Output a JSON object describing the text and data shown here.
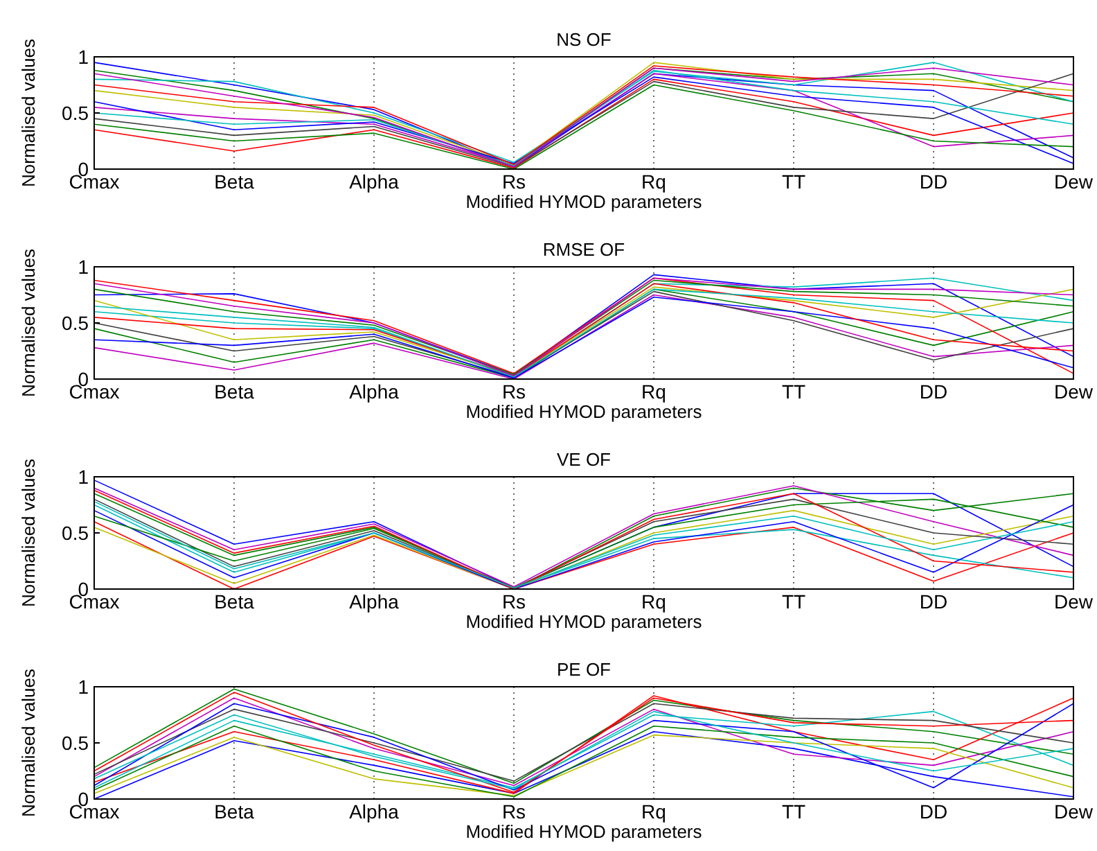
{
  "chart_data": [
    {
      "type": "line",
      "title": "NS OF",
      "xlabel": "Modified HYMOD parameters",
      "ylabel": "Normalised values",
      "categories": [
        "Cmax",
        "Beta",
        "Alpha",
        "Rs",
        "Rq",
        "TT",
        "DD",
        "Dew"
      ],
      "ylim": [
        0,
        1
      ],
      "yticks": [
        0,
        0.5,
        1
      ],
      "grid": "x",
      "line_style": "solid",
      "series": [
        {
          "color": "#0000ff",
          "values": [
            0.95,
            0.75,
            0.53,
            0.02,
            0.85,
            0.75,
            0.7,
            0.1
          ]
        },
        {
          "color": "#008000",
          "values": [
            0.88,
            0.7,
            0.45,
            0.03,
            0.9,
            0.8,
            0.85,
            0.6
          ]
        },
        {
          "color": "#ff0000",
          "values": [
            0.35,
            0.16,
            0.35,
            0.01,
            0.8,
            0.6,
            0.3,
            0.5
          ]
        },
        {
          "color": "#00bfbf",
          "values": [
            0.8,
            0.78,
            0.5,
            0.06,
            0.87,
            0.75,
            0.95,
            0.6
          ]
        },
        {
          "color": "#bf00bf",
          "values": [
            0.55,
            0.45,
            0.4,
            0.03,
            0.85,
            0.7,
            0.2,
            0.3
          ]
        },
        {
          "color": "#bfbf00",
          "values": [
            0.7,
            0.55,
            0.48,
            0.04,
            0.95,
            0.8,
            0.8,
            0.7
          ]
        },
        {
          "color": "#404040",
          "values": [
            0.45,
            0.3,
            0.38,
            0.02,
            0.78,
            0.55,
            0.45,
            0.85
          ]
        },
        {
          "color": "#0000ff",
          "values": [
            0.6,
            0.35,
            0.42,
            0.05,
            0.82,
            0.65,
            0.55,
            0.05
          ]
        },
        {
          "color": "#008000",
          "values": [
            0.4,
            0.25,
            0.32,
            0.0,
            0.75,
            0.52,
            0.25,
            0.2
          ]
        },
        {
          "color": "#ff0000",
          "values": [
            0.75,
            0.6,
            0.55,
            0.04,
            0.92,
            0.82,
            0.75,
            0.65
          ]
        },
        {
          "color": "#00bfbf",
          "values": [
            0.5,
            0.4,
            0.44,
            0.03,
            0.88,
            0.7,
            0.6,
            0.4
          ]
        },
        {
          "color": "#bf00bf",
          "values": [
            0.85,
            0.65,
            0.46,
            0.02,
            0.9,
            0.78,
            0.9,
            0.75
          ]
        }
      ]
    },
    {
      "type": "line",
      "title": "RMSE OF",
      "xlabel": "Modified HYMOD parameters",
      "ylabel": "Normalised values",
      "categories": [
        "Cmax",
        "Beta",
        "Alpha",
        "Rs",
        "Rq",
        "TT",
        "DD",
        "Dew"
      ],
      "ylim": [
        0,
        1
      ],
      "yticks": [
        0,
        0.5,
        1
      ],
      "grid": "x",
      "line_style": "solid",
      "series": [
        {
          "color": "#0000ff",
          "values": [
            0.75,
            0.76,
            0.5,
            0.04,
            0.93,
            0.8,
            0.85,
            0.2
          ]
        },
        {
          "color": "#008000",
          "values": [
            0.45,
            0.15,
            0.35,
            0.01,
            0.8,
            0.6,
            0.3,
            0.6
          ]
        },
        {
          "color": "#ff0000",
          "values": [
            0.88,
            0.7,
            0.52,
            0.05,
            0.9,
            0.75,
            0.7,
            0.05
          ]
        },
        {
          "color": "#00bfbf",
          "values": [
            0.6,
            0.5,
            0.45,
            0.02,
            0.85,
            0.82,
            0.9,
            0.7
          ]
        },
        {
          "color": "#bf00bf",
          "values": [
            0.28,
            0.08,
            0.32,
            0.0,
            0.75,
            0.55,
            0.2,
            0.3
          ]
        },
        {
          "color": "#bfbf00",
          "values": [
            0.7,
            0.35,
            0.42,
            0.03,
            0.82,
            0.7,
            0.55,
            0.8
          ]
        },
        {
          "color": "#404040",
          "values": [
            0.5,
            0.25,
            0.38,
            0.02,
            0.78,
            0.52,
            0.17,
            0.45
          ]
        },
        {
          "color": "#0000ff",
          "values": [
            0.35,
            0.3,
            0.4,
            0.01,
            0.73,
            0.6,
            0.45,
            0.1
          ]
        },
        {
          "color": "#008000",
          "values": [
            0.8,
            0.6,
            0.48,
            0.04,
            0.88,
            0.78,
            0.75,
            0.65
          ]
        },
        {
          "color": "#ff0000",
          "values": [
            0.55,
            0.45,
            0.44,
            0.03,
            0.85,
            0.68,
            0.35,
            0.25
          ]
        },
        {
          "color": "#00bfbf",
          "values": [
            0.65,
            0.55,
            0.46,
            0.02,
            0.8,
            0.72,
            0.6,
            0.5
          ]
        },
        {
          "color": "#bf00bf",
          "values": [
            0.85,
            0.65,
            0.5,
            0.03,
            0.9,
            0.8,
            0.8,
            0.75
          ]
        }
      ]
    },
    {
      "type": "line",
      "title": "VE OF",
      "xlabel": "Modified HYMOD parameters",
      "ylabel": "Normalised values",
      "categories": [
        "Cmax",
        "Beta",
        "Alpha",
        "Rs",
        "Rq",
        "TT",
        "DD",
        "Dew"
      ],
      "ylim": [
        0,
        1
      ],
      "yticks": [
        0,
        0.5,
        1
      ],
      "grid": "x",
      "line_style": "solid",
      "series": [
        {
          "color": "#0000ff",
          "values": [
            0.97,
            0.4,
            0.6,
            0.01,
            0.55,
            0.85,
            0.85,
            0.2
          ]
        },
        {
          "color": "#008000",
          "values": [
            0.85,
            0.3,
            0.55,
            0.0,
            0.65,
            0.9,
            0.7,
            0.85
          ]
        },
        {
          "color": "#ff0000",
          "values": [
            0.6,
            0.0,
            0.47,
            0.0,
            0.4,
            0.55,
            0.07,
            0.5
          ]
        },
        {
          "color": "#00bfbf",
          "values": [
            0.75,
            0.15,
            0.5,
            0.01,
            0.45,
            0.53,
            0.3,
            0.1
          ]
        },
        {
          "color": "#bf00bf",
          "values": [
            0.9,
            0.35,
            0.58,
            0.02,
            0.67,
            0.92,
            0.6,
            0.3
          ]
        },
        {
          "color": "#bfbf00",
          "values": [
            0.55,
            0.05,
            0.48,
            0.0,
            0.5,
            0.7,
            0.4,
            0.65
          ]
        },
        {
          "color": "#404040",
          "values": [
            0.8,
            0.2,
            0.52,
            0.01,
            0.6,
            0.8,
            0.5,
            0.4
          ]
        },
        {
          "color": "#0000ff",
          "values": [
            0.7,
            0.1,
            0.5,
            0.0,
            0.42,
            0.6,
            0.15,
            0.75
          ]
        },
        {
          "color": "#008000",
          "values": [
            0.65,
            0.25,
            0.54,
            0.01,
            0.55,
            0.75,
            0.8,
            0.55
          ]
        },
        {
          "color": "#ff0000",
          "values": [
            0.88,
            0.32,
            0.56,
            0.0,
            0.62,
            0.85,
            0.25,
            0.15
          ]
        },
        {
          "color": "#00bfbf",
          "values": [
            0.78,
            0.18,
            0.5,
            0.01,
            0.48,
            0.65,
            0.35,
            0.6
          ]
        }
      ]
    },
    {
      "type": "line",
      "title": "PE OF",
      "xlabel": "Modified HYMOD parameters",
      "ylabel": "Normalised values",
      "categories": [
        "Cmax",
        "Beta",
        "Alpha",
        "Rs",
        "Rq",
        "TT",
        "DD",
        "Dew"
      ],
      "ylim": [
        0,
        1
      ],
      "yticks": [
        0,
        0.5,
        1
      ],
      "grid": "x",
      "line_style": "solid",
      "series": [
        {
          "color": "#0000ff",
          "values": [
            0.0,
            0.52,
            0.3,
            0.05,
            0.6,
            0.45,
            0.2,
            0.02
          ]
        },
        {
          "color": "#008000",
          "values": [
            0.28,
            0.98,
            0.58,
            0.14,
            0.88,
            0.7,
            0.6,
            0.4
          ]
        },
        {
          "color": "#ff0000",
          "values": [
            0.15,
            0.6,
            0.35,
            0.05,
            0.92,
            0.6,
            0.35,
            0.9
          ]
        },
        {
          "color": "#00bfbf",
          "values": [
            0.1,
            0.7,
            0.4,
            0.1,
            0.75,
            0.65,
            0.78,
            0.3
          ]
        },
        {
          "color": "#bf00bf",
          "values": [
            0.2,
            0.9,
            0.45,
            0.12,
            0.8,
            0.4,
            0.3,
            0.6
          ]
        },
        {
          "color": "#bfbf00",
          "values": [
            0.05,
            0.55,
            0.18,
            0.03,
            0.57,
            0.5,
            0.45,
            0.1
          ]
        },
        {
          "color": "#404040",
          "values": [
            0.22,
            0.8,
            0.5,
            0.16,
            0.85,
            0.72,
            0.7,
            0.5
          ]
        },
        {
          "color": "#0000ff",
          "values": [
            0.12,
            0.85,
            0.55,
            0.08,
            0.7,
            0.6,
            0.1,
            0.85
          ]
        },
        {
          "color": "#008000",
          "values": [
            0.08,
            0.65,
            0.25,
            0.02,
            0.65,
            0.55,
            0.5,
            0.2
          ]
        },
        {
          "color": "#ff0000",
          "values": [
            0.25,
            0.95,
            0.48,
            0.06,
            0.9,
            0.68,
            0.65,
            0.7
          ]
        },
        {
          "color": "#00bfbf",
          "values": [
            0.18,
            0.75,
            0.38,
            0.09,
            0.78,
            0.5,
            0.25,
            0.45
          ]
        }
      ]
    }
  ]
}
